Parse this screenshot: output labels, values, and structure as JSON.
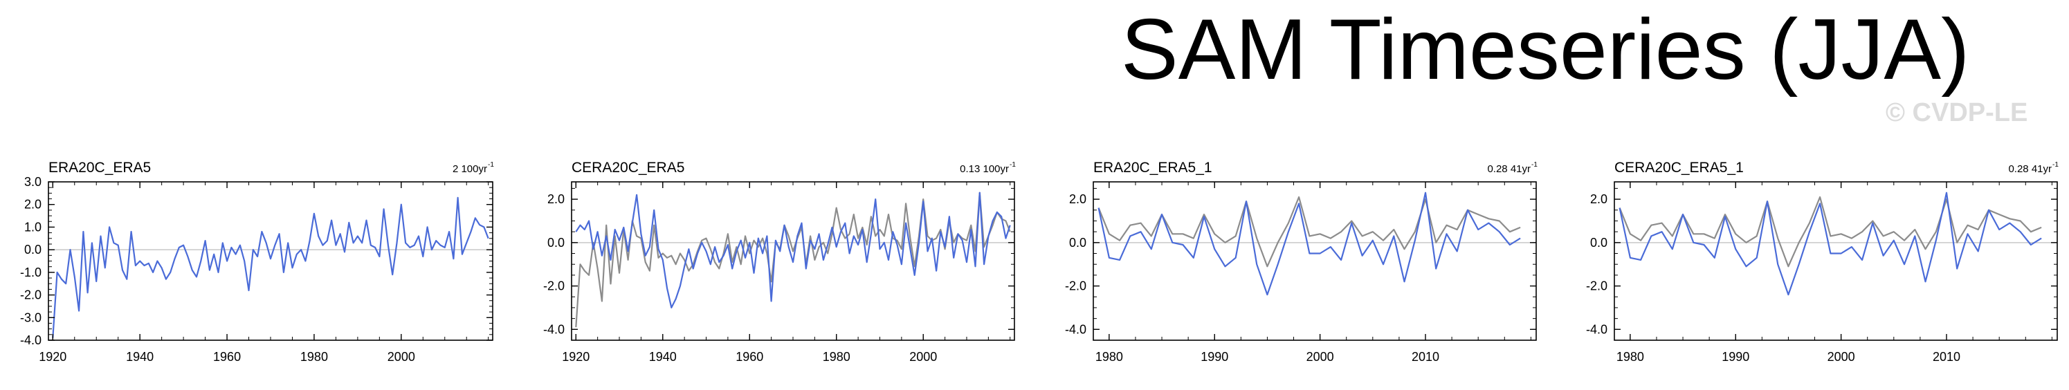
{
  "title": "SAM Timeseries (JJA)",
  "copyright": "© CVDP-LE",
  "colors": {
    "primary": "#4a6bd8",
    "secondary": "#8c8c8c",
    "zero_line": "#c8c8c8"
  },
  "chart_data": [
    {
      "type": "line",
      "subtitle_left": "ERA20C_ERA5",
      "subtitle_right": "2 100yr",
      "subtitle_right_sup": "-1",
      "xlim": [
        1919,
        2021
      ],
      "ylim": [
        -4.0,
        3.0
      ],
      "xticks": [
        1920,
        1940,
        1960,
        1980,
        2000
      ],
      "yticks": [
        -4.0,
        -3.0,
        -2.0,
        -1.0,
        0.0,
        1.0,
        2.0,
        3.0
      ],
      "ytick_labels": [
        "-4.0",
        "-3.0",
        "-2.0",
        "-1.0",
        "0.0",
        "1.0",
        "2.0",
        "3.0"
      ],
      "series": [
        {
          "color": "#4a6bd8",
          "x": [
            1920,
            1921,
            1922,
            1923,
            1924,
            1925,
            1926,
            1927,
            1928,
            1929,
            1930,
            1931,
            1932,
            1933,
            1934,
            1935,
            1936,
            1937,
            1938,
            1939,
            1940,
            1941,
            1942,
            1943,
            1944,
            1945,
            1946,
            1947,
            1948,
            1949,
            1950,
            1951,
            1952,
            1953,
            1954,
            1955,
            1956,
            1957,
            1958,
            1959,
            1960,
            1961,
            1962,
            1963,
            1964,
            1965,
            1966,
            1967,
            1968,
            1969,
            1970,
            1971,
            1972,
            1973,
            1974,
            1975,
            1976,
            1977,
            1978,
            1979,
            1980,
            1981,
            1982,
            1983,
            1984,
            1985,
            1986,
            1987,
            1988,
            1989,
            1990,
            1991,
            1992,
            1993,
            1994,
            1995,
            1996,
            1997,
            1998,
            1999,
            2000,
            2001,
            2002,
            2003,
            2004,
            2005,
            2006,
            2007,
            2008,
            2009,
            2010,
            2011,
            2012,
            2013,
            2014,
            2015,
            2016,
            2017,
            2018,
            2019
          ],
          "y": [
            -3.9,
            -1.0,
            -1.3,
            -1.5,
            0.0,
            -1.2,
            -2.7,
            0.8,
            -1.9,
            0.3,
            -1.4,
            0.6,
            -0.8,
            1.0,
            0.3,
            0.2,
            -0.9,
            -1.3,
            0.8,
            -0.7,
            -0.5,
            -0.7,
            -0.6,
            -1.0,
            -0.5,
            -0.8,
            -1.3,
            -1.0,
            -0.4,
            0.1,
            0.2,
            -0.3,
            -0.9,
            -1.2,
            -0.5,
            0.4,
            -0.9,
            -0.2,
            -1.0,
            0.3,
            -0.5,
            0.1,
            -0.2,
            0.2,
            -0.5,
            -1.8,
            0.0,
            -0.3,
            0.8,
            0.3,
            -0.4,
            0.2,
            0.7,
            -1.0,
            0.3,
            -0.8,
            -0.2,
            0.0,
            -0.5,
            0.4,
            1.6,
            0.6,
            0.2,
            0.4,
            1.3,
            0.2,
            0.7,
            -0.1,
            1.2,
            0.3,
            0.6,
            0.3,
            1.3,
            0.2,
            0.1,
            -0.3,
            1.8,
            0.2,
            -1.1,
            0.3,
            2.0,
            0.3,
            0.1,
            0.2,
            0.6,
            -0.3,
            1.0,
            0.0,
            0.4,
            0.2,
            0.1,
            0.8,
            -0.4,
            2.3,
            -0.2,
            0.3,
            0.8,
            1.4,
            1.1,
            1.0
          ],
          "extra_x": [
            2020
          ],
          "extra_y": [
            0.5
          ]
        }
      ]
    },
    {
      "type": "line",
      "subtitle_left": "CERA20C_ERA5",
      "subtitle_right": "0.13 100yr",
      "subtitle_right_sup": "-1",
      "xlim": [
        1919,
        2021
      ],
      "ylim": [
        -4.5,
        2.8
      ],
      "xticks": [
        1920,
        1940,
        1960,
        1980,
        2000
      ],
      "yticks": [
        -4.0,
        -2.0,
        0.0,
        2.0
      ],
      "ytick_labels": [
        "-4.0",
        "-2.0",
        "0.0",
        "2.0"
      ],
      "series": [
        {
          "color": "#8c8c8c",
          "x": [
            1920,
            1921,
            1922,
            1923,
            1924,
            1925,
            1926,
            1927,
            1928,
            1929,
            1930,
            1931,
            1932,
            1933,
            1934,
            1935,
            1936,
            1937,
            1938,
            1939,
            1940,
            1941,
            1942,
            1943,
            1944,
            1945,
            1946,
            1947,
            1948,
            1949,
            1950,
            1951,
            1952,
            1953,
            1954,
            1955,
            1956,
            1957,
            1958,
            1959,
            1960,
            1961,
            1962,
            1963,
            1964,
            1965,
            1966,
            1967,
            1968,
            1969,
            1970,
            1971,
            1972,
            1973,
            1974,
            1975,
            1976,
            1977,
            1978,
            1979,
            1980,
            1981,
            1982,
            1983,
            1984,
            1985,
            1986,
            1987,
            1988,
            1989,
            1990,
            1991,
            1992,
            1993,
            1994,
            1995,
            1996,
            1997,
            1998,
            1999,
            2000,
            2001,
            2002,
            2003,
            2004,
            2005,
            2006,
            2007,
            2008,
            2009,
            2010,
            2011,
            2012,
            2013,
            2014,
            2015,
            2016,
            2017,
            2018,
            2019,
            2020
          ],
          "y": [
            -3.9,
            -1.0,
            -1.3,
            -1.5,
            0.0,
            -1.2,
            -2.7,
            0.8,
            -1.9,
            0.3,
            -1.4,
            0.6,
            -0.8,
            1.0,
            0.3,
            0.2,
            -0.9,
            -1.3,
            0.8,
            -0.7,
            -0.5,
            -0.7,
            -0.6,
            -1.0,
            -0.5,
            -0.8,
            -1.3,
            -1.0,
            -0.4,
            0.1,
            0.2,
            -0.3,
            -0.9,
            -1.2,
            -0.5,
            0.4,
            -0.9,
            -0.2,
            -1.0,
            0.3,
            -0.5,
            0.1,
            -0.2,
            0.2,
            -0.5,
            -1.8,
            0.0,
            -0.3,
            0.8,
            0.3,
            -0.4,
            0.2,
            0.7,
            -1.0,
            0.3,
            -0.8,
            -0.2,
            0.0,
            -0.5,
            0.4,
            1.6,
            0.6,
            0.2,
            0.4,
            1.3,
            0.2,
            0.7,
            -0.1,
            1.2,
            0.3,
            0.6,
            0.3,
            1.3,
            0.2,
            0.1,
            -0.3,
            1.8,
            0.2,
            -1.1,
            0.3,
            2.0,
            0.3,
            0.1,
            0.2,
            0.6,
            -0.3,
            1.0,
            0.0,
            0.4,
            0.2,
            0.1,
            0.8,
            -0.4,
            2.3,
            -0.2,
            0.3,
            0.8,
            1.4,
            1.1,
            1.0,
            0.5
          ]
        },
        {
          "color": "#4a6bd8",
          "x": [
            1920,
            1921,
            1922,
            1923,
            1924,
            1925,
            1926,
            1927,
            1928,
            1929,
            1930,
            1931,
            1932,
            1933,
            1934,
            1935,
            1936,
            1937,
            1938,
            1939,
            1940,
            1941,
            1942,
            1943,
            1944,
            1945,
            1946,
            1947,
            1948,
            1949,
            1950,
            1951,
            1952,
            1953,
            1954,
            1955,
            1956,
            1957,
            1958,
            1959,
            1960,
            1961,
            1962,
            1963,
            1964,
            1965,
            1966,
            1967,
            1968,
            1969,
            1970,
            1971,
            1972,
            1973,
            1974,
            1975,
            1976,
            1977,
            1978,
            1979,
            1980,
            1981,
            1982,
            1983,
            1984,
            1985,
            1986,
            1987,
            1988,
            1989,
            1990,
            1991,
            1992,
            1993,
            1994,
            1995,
            1996,
            1997,
            1998,
            1999,
            2000,
            2001,
            2002,
            2003,
            2004,
            2005,
            2006,
            2007,
            2008,
            2009,
            2010,
            2011,
            2012,
            2013,
            2014,
            2015,
            2016,
            2017,
            2018,
            2019,
            2020
          ],
          "y": [
            0.5,
            0.8,
            0.6,
            1.0,
            -0.3,
            0.5,
            -0.6,
            0.3,
            -0.8,
            0.6,
            0.1,
            0.7,
            -0.4,
            0.9,
            2.2,
            0.4,
            -0.6,
            -0.2,
            1.5,
            -0.3,
            -0.8,
            -2.1,
            -3.0,
            -2.6,
            -2.0,
            -1.1,
            -0.3,
            -1.2,
            -0.5,
            0.0,
            -0.4,
            -1.0,
            -0.2,
            -0.9,
            -0.6,
            -0.1,
            -1.2,
            -0.4,
            0.1,
            -0.7,
            0.0,
            -1.4,
            0.2,
            -0.5,
            0.3,
            -2.7,
            0.1,
            -0.4,
            0.8,
            -0.2,
            -0.9,
            0.3,
            0.9,
            -1.2,
            0.1,
            -0.3,
            0.4,
            -0.8,
            -0.1,
            0.7,
            -0.2,
            0.5,
            0.9,
            -0.5,
            0.3,
            -0.1,
            0.6,
            -0.9,
            0.4,
            2.0,
            -0.3,
            0.0,
            -0.8,
            0.5,
            -0.1,
            -1.0,
            0.9,
            -0.3,
            -1.5,
            0.0,
            1.9,
            -0.4,
            0.2,
            -1.3,
            0.5,
            -0.2,
            1.2,
            -0.7,
            0.4,
            0.1,
            -0.9,
            0.6,
            -1.1,
            2.3,
            -1.0,
            0.3,
            1.0,
            1.4,
            1.2,
            0.2,
            0.8
          ]
        }
      ]
    },
    {
      "type": "line",
      "subtitle_left": "ERA20C_ERA5_1",
      "subtitle_right": "0.28 41yr",
      "subtitle_right_sup": "-1",
      "xlim": [
        1978.5,
        2020.5
      ],
      "ylim": [
        -4.5,
        2.8
      ],
      "xticks": [
        1980,
        1990,
        2000,
        2010
      ],
      "yticks": [
        -4.0,
        -2.0,
        0.0,
        2.0
      ],
      "ytick_labels": [
        "-4.0",
        "-2.0",
        "0.0",
        "2.0"
      ],
      "series": [
        {
          "color": "#8c8c8c",
          "x": [
            1979,
            1980,
            1981,
            1982,
            1983,
            1984,
            1985,
            1986,
            1987,
            1988,
            1989,
            1990,
            1991,
            1992,
            1993,
            1994,
            1995,
            1996,
            1997,
            1998,
            1999,
            2000,
            2001,
            2002,
            2003,
            2004,
            2005,
            2006,
            2007,
            2008,
            2009,
            2010,
            2011,
            2012,
            2013,
            2014,
            2015,
            2016,
            2017,
            2018,
            2019
          ],
          "y": [
            1.6,
            0.4,
            0.1,
            0.8,
            0.9,
            0.3,
            1.3,
            0.4,
            0.4,
            0.2,
            1.3,
            0.4,
            0.0,
            0.3,
            1.9,
            0.2,
            -1.1,
            0.0,
            0.9,
            2.1,
            0.3,
            0.4,
            0.2,
            0.5,
            1.0,
            0.3,
            0.5,
            0.1,
            0.6,
            -0.3,
            0.5,
            2.0,
            0.0,
            0.8,
            0.6,
            1.5,
            1.3,
            1.1,
            1.0,
            0.5,
            0.7
          ]
        },
        {
          "color": "#4a6bd8",
          "x": [
            1979,
            1980,
            1981,
            1982,
            1983,
            1984,
            1985,
            1986,
            1987,
            1988,
            1989,
            1990,
            1991,
            1992,
            1993,
            1994,
            1995,
            1996,
            1997,
            1998,
            1999,
            2000,
            2001,
            2002,
            2003,
            2004,
            2005,
            2006,
            2007,
            2008,
            2009,
            2010,
            2011,
            2012,
            2013,
            2014,
            2015,
            2016,
            2017,
            2018,
            2019
          ],
          "y": [
            1.6,
            -0.7,
            -0.8,
            0.3,
            0.5,
            -0.3,
            1.3,
            0.0,
            -0.1,
            -0.7,
            1.2,
            -0.3,
            -1.1,
            -0.7,
            1.9,
            -1.0,
            -2.4,
            -1.0,
            0.5,
            1.8,
            -0.5,
            -0.5,
            -0.2,
            -0.8,
            0.9,
            -0.6,
            0.1,
            -1.0,
            0.3,
            -1.8,
            0.1,
            2.3,
            -1.2,
            0.4,
            -0.4,
            1.5,
            0.6,
            0.9,
            0.5,
            -0.1,
            0.2
          ]
        }
      ]
    },
    {
      "type": "line",
      "subtitle_left": "CERA20C_ERA5_1",
      "subtitle_right": "0.28 41yr",
      "subtitle_right_sup": "-1",
      "xlim": [
        1978.5,
        2020.5
      ],
      "ylim": [
        -4.5,
        2.8
      ],
      "xticks": [
        1980,
        1990,
        2000,
        2010
      ],
      "yticks": [
        -4.0,
        -2.0,
        0.0,
        2.0
      ],
      "ytick_labels": [
        "-4.0",
        "-2.0",
        "0.0",
        "2.0"
      ],
      "series": [
        {
          "color": "#8c8c8c",
          "x": [
            1979,
            1980,
            1981,
            1982,
            1983,
            1984,
            1985,
            1986,
            1987,
            1988,
            1989,
            1990,
            1991,
            1992,
            1993,
            1994,
            1995,
            1996,
            1997,
            1998,
            1999,
            2000,
            2001,
            2002,
            2003,
            2004,
            2005,
            2006,
            2007,
            2008,
            2009,
            2010,
            2011,
            2012,
            2013,
            2014,
            2015,
            2016,
            2017,
            2018,
            2019
          ],
          "y": [
            1.6,
            0.4,
            0.1,
            0.8,
            0.9,
            0.3,
            1.3,
            0.4,
            0.4,
            0.2,
            1.3,
            0.4,
            0.0,
            0.3,
            1.9,
            0.2,
            -1.1,
            0.0,
            0.9,
            2.1,
            0.3,
            0.4,
            0.2,
            0.5,
            1.0,
            0.3,
            0.5,
            0.1,
            0.6,
            -0.3,
            0.5,
            2.0,
            0.0,
            0.8,
            0.6,
            1.5,
            1.3,
            1.1,
            1.0,
            0.5,
            0.7
          ]
        },
        {
          "color": "#4a6bd8",
          "x": [
            1979,
            1980,
            1981,
            1982,
            1983,
            1984,
            1985,
            1986,
            1987,
            1988,
            1989,
            1990,
            1991,
            1992,
            1993,
            1994,
            1995,
            1996,
            1997,
            1998,
            1999,
            2000,
            2001,
            2002,
            2003,
            2004,
            2005,
            2006,
            2007,
            2008,
            2009,
            2010,
            2011,
            2012,
            2013,
            2014,
            2015,
            2016,
            2017,
            2018,
            2019
          ],
          "y": [
            1.6,
            -0.7,
            -0.8,
            0.3,
            0.5,
            -0.3,
            1.3,
            0.0,
            -0.1,
            -0.7,
            1.2,
            -0.3,
            -1.1,
            -0.7,
            1.9,
            -1.0,
            -2.4,
            -1.0,
            0.5,
            1.8,
            -0.5,
            -0.5,
            -0.2,
            -0.8,
            0.9,
            -0.6,
            0.1,
            -1.0,
            0.3,
            -1.8,
            0.1,
            2.3,
            -1.2,
            0.4,
            -0.4,
            1.5,
            0.6,
            0.9,
            0.5,
            -0.1,
            0.2
          ]
        }
      ]
    }
  ]
}
